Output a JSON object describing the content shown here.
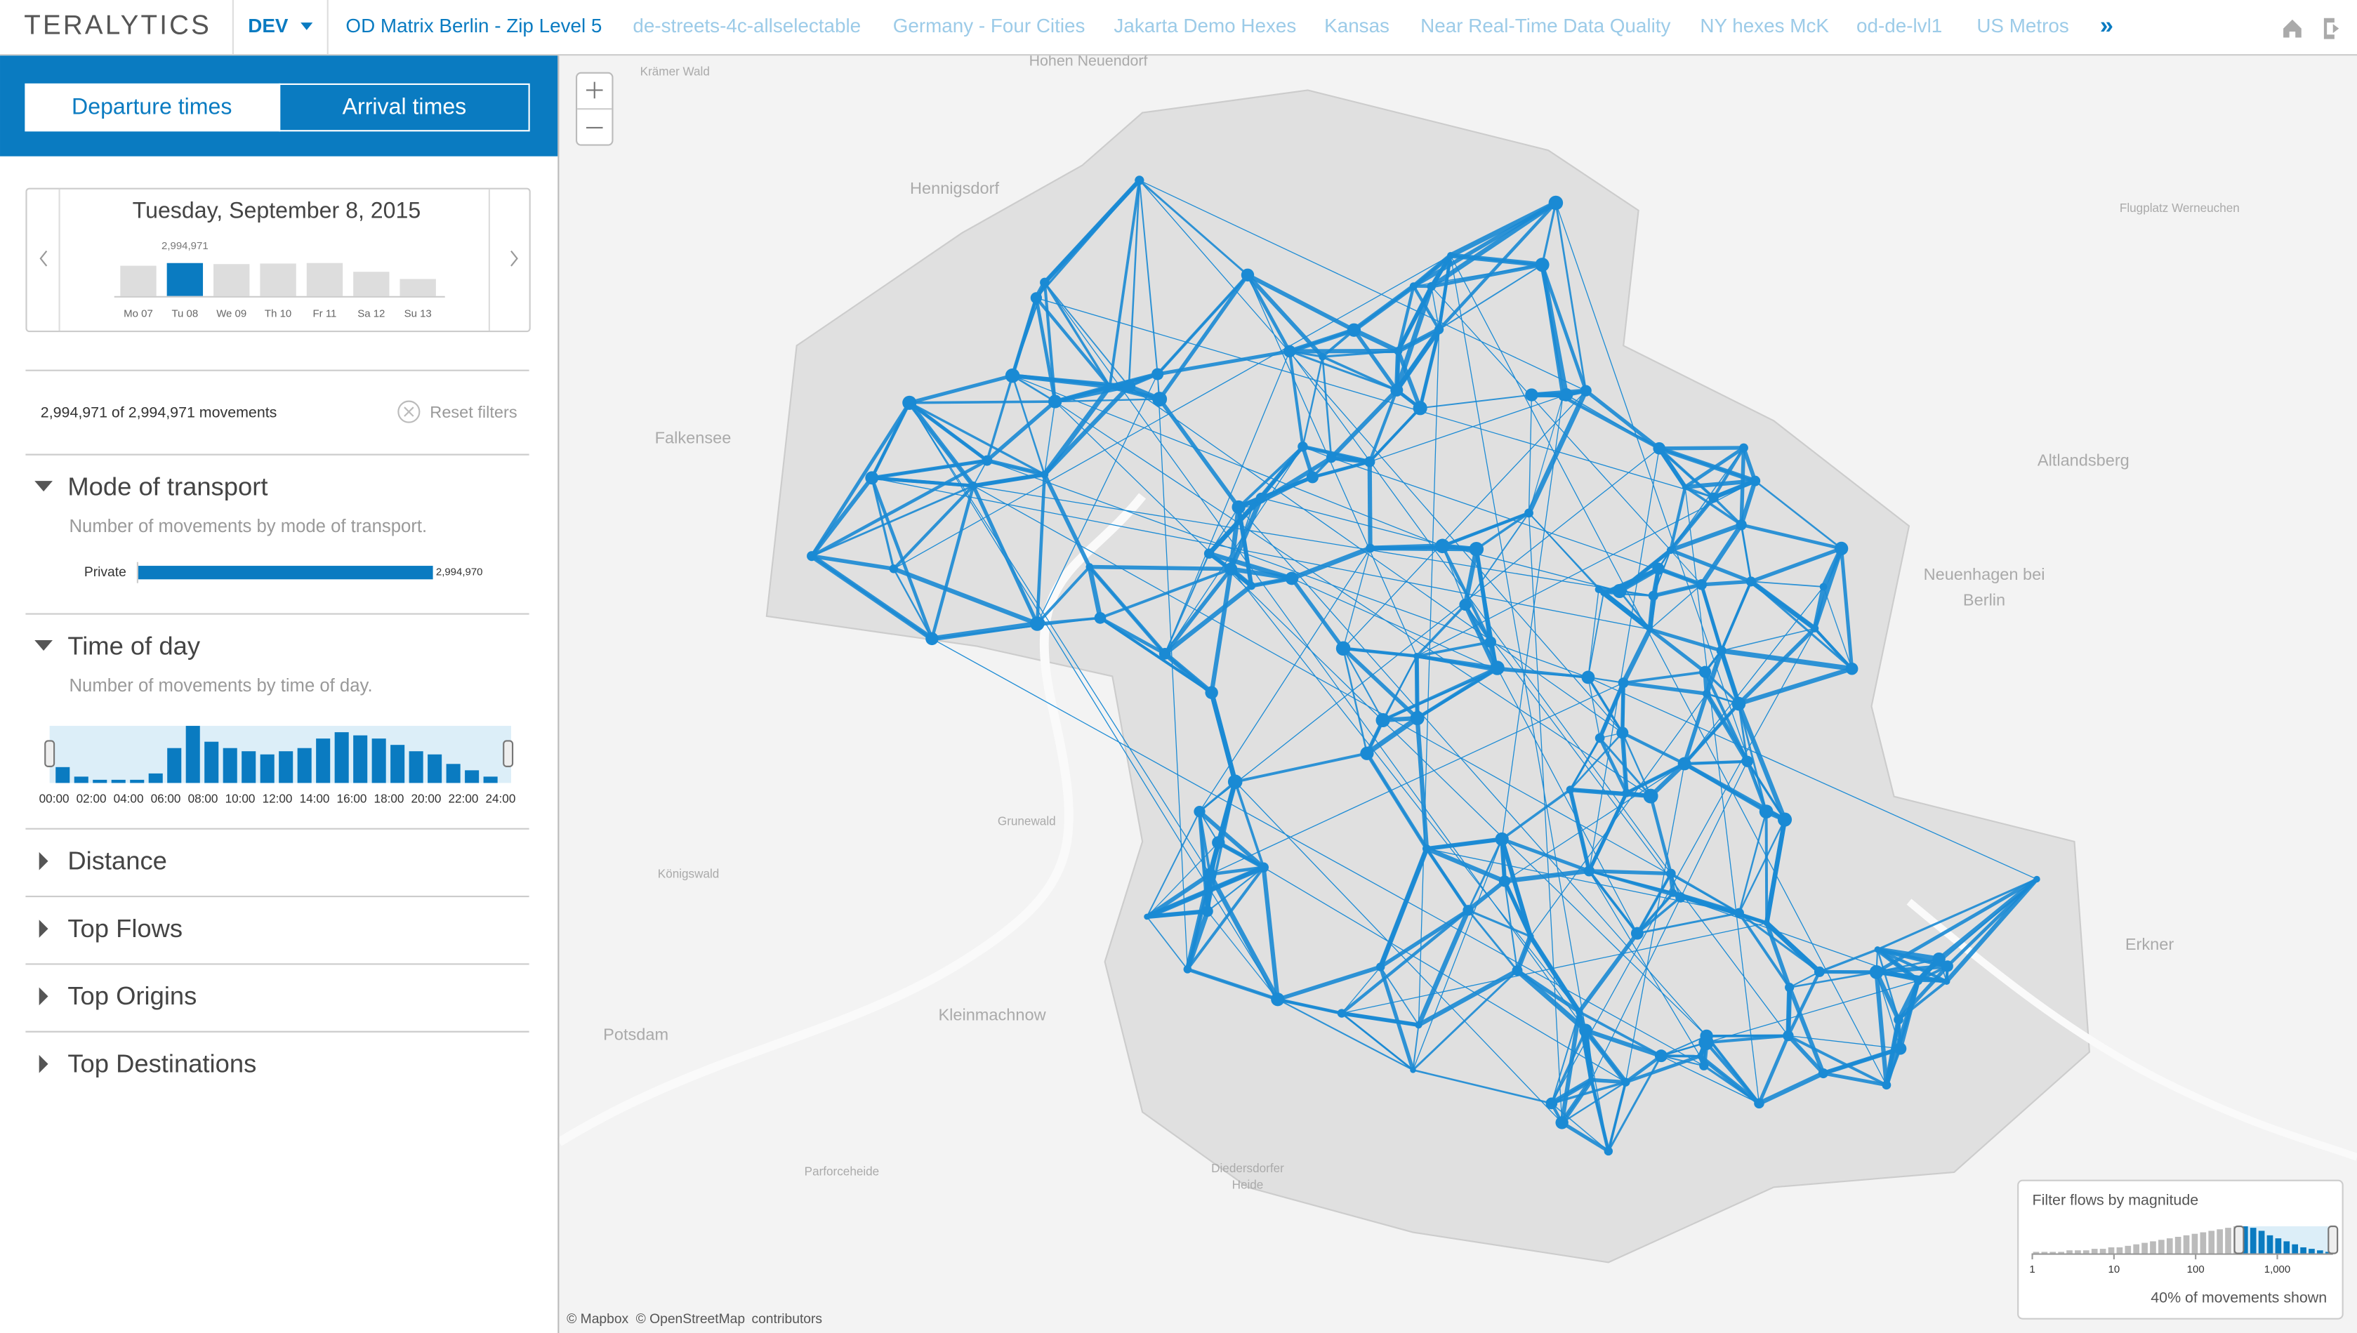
{
  "header": {
    "brand": "TERALYTICS",
    "env": "DEV",
    "tabs": [
      "OD Matrix Berlin - Zip Level 5",
      "de-streets-4c-allselectable",
      "Germany - Four Cities",
      "Jakarta Demo Hexes",
      "Kansas",
      "Near Real-Time Data Quality",
      "NY hexes McK",
      "od-de-lvl1",
      "US Metros"
    ]
  },
  "sidebar": {
    "toggle": [
      "Departure times",
      "Arrival times"
    ],
    "date": "Tuesday, September 8, 2015",
    "day_chart": {
      "categories": [
        "Mo 07",
        "Tu 08",
        "We 09",
        "Th 10",
        "Fr 11",
        "Sa 12",
        "Su 13"
      ],
      "values": [
        2750000,
        2994971,
        2900000,
        2950000,
        3000000,
        2200000,
        1550000
      ],
      "selected_value_label": "2,994,971"
    },
    "movements": "2,994,971 of 2,994,971 movements",
    "reset": "Reset filters",
    "mode": {
      "title": "Mode of transport",
      "subtitle": "Number of movements by mode of transport.",
      "categories": [
        "Private"
      ],
      "values": [
        2994970
      ],
      "value_labels": [
        "2,994,970"
      ]
    },
    "time": {
      "title": "Time of day",
      "subtitle": "Number of movements by time of day.",
      "values": [
        5,
        2,
        1,
        1,
        1,
        3,
        11,
        18,
        13,
        11,
        10,
        9,
        10,
        11,
        14,
        16,
        15,
        14,
        12,
        10,
        9,
        6,
        4,
        2
      ],
      "xticks": [
        "00:00",
        "02:00",
        "04:00",
        "06:00",
        "08:00",
        "10:00",
        "12:00",
        "14:00",
        "16:00",
        "18:00",
        "20:00",
        "22:00",
        "24:00"
      ]
    },
    "collapsed": [
      "Distance",
      "Top Flows",
      "Top Origins",
      "Top Destinations"
    ]
  },
  "map": {
    "labels": [
      "Hohen Neuendorf",
      "Hennigsdorf",
      "Falkensee",
      "Altlandsberg",
      "Neuenhagen bei",
      "Berlin",
      "Erkner",
      "Potsdam",
      "Kleinmachnow",
      "Grunewald",
      "Flugplatz Werneuchen",
      "Krämer Wald",
      "Königswald",
      "Parforceheide",
      "Diedersdorfer",
      "Heide"
    ],
    "attribution": [
      "© Mapbox",
      "© OpenStreetMap",
      "contributors"
    ],
    "filter": {
      "title": "Filter flows by magnitude",
      "xlim": [
        1,
        4800
      ],
      "xticks": [
        1,
        10,
        100,
        {
          "value": 1000,
          "label": "1,000"
        }
      ],
      "log": true,
      "counts": [
        1,
        1,
        1,
        1,
        2,
        2,
        2,
        3,
        3,
        4,
        4,
        5,
        6,
        7,
        8,
        9,
        10,
        11,
        12,
        13,
        14,
        15,
        16,
        17,
        18,
        18,
        17,
        15,
        12,
        10,
        8,
        6,
        4,
        3,
        2,
        1
      ],
      "selection_min": 340,
      "caption": "40% of movements shown"
    }
  }
}
